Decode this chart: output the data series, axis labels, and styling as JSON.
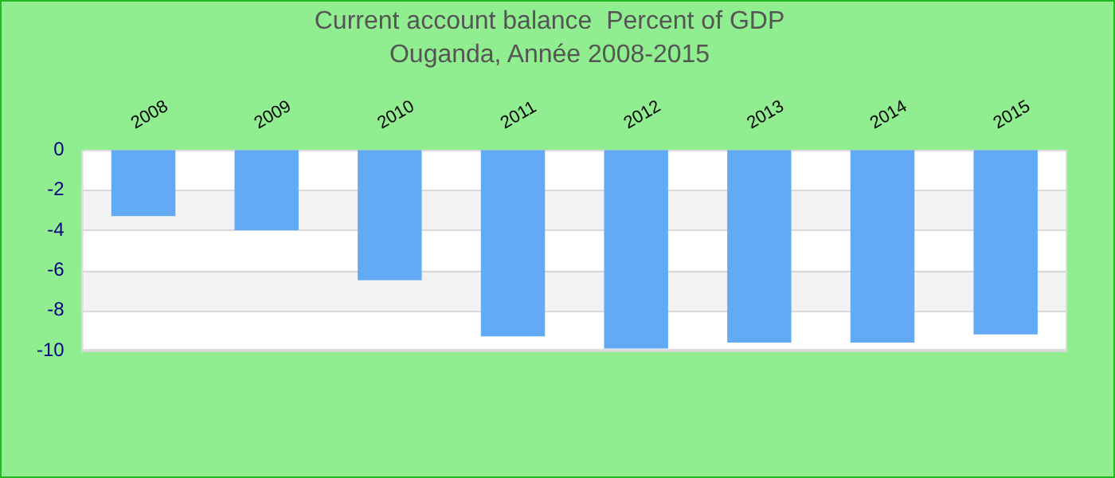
{
  "chart_data": {
    "type": "bar",
    "title": "Current account balance  Percent of GDP",
    "subtitle": "Ouganda, Année 2008-2015",
    "categories": [
      "2008",
      "2009",
      "2010",
      "2011",
      "2012",
      "2013",
      "2014",
      "2015"
    ],
    "values": [
      -3.3,
      -4.0,
      -6.5,
      -9.3,
      -9.9,
      -9.6,
      -9.6,
      -9.2
    ],
    "color": "#63aaf5",
    "ylim": [
      -10,
      0
    ],
    "yticks": [
      -10,
      -8,
      -6,
      -4,
      -2,
      0
    ],
    "grid": "y"
  }
}
